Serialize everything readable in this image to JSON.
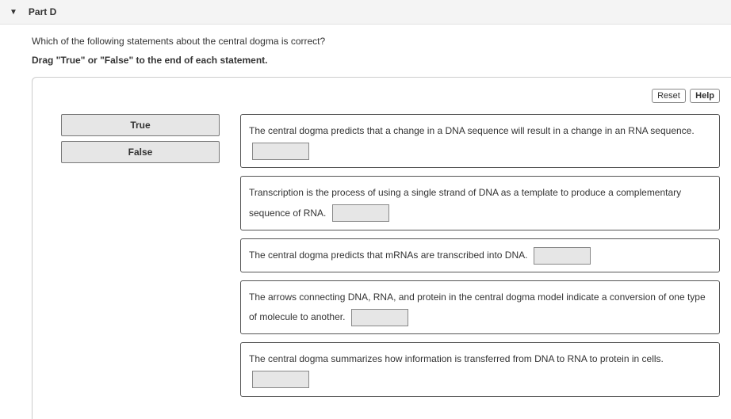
{
  "header": {
    "part_label": "Part D"
  },
  "question": {
    "text": "Which of the following statements about the central dogma is correct?",
    "instruction": "Drag \"True\" or \"False\" to the end of each statement."
  },
  "controls": {
    "reset_label": "Reset",
    "help_label": "Help"
  },
  "sources": {
    "true_label": "True",
    "false_label": "False"
  },
  "statements": [
    {
      "text": "The central dogma predicts that a change in a DNA sequence will result in a change in an RNA sequence."
    },
    {
      "text": "Transcription is the process of using a single strand of DNA as a template to produce a complementary sequence of RNA."
    },
    {
      "text": "The central dogma predicts that mRNAs are transcribed into DNA."
    },
    {
      "text": "The arrows connecting DNA, RNA, and protein in the central dogma model indicate a conversion of one type of molecule to another."
    },
    {
      "text": "The central dogma summarizes how information is transferred from DNA to RNA to protein in cells."
    }
  ]
}
